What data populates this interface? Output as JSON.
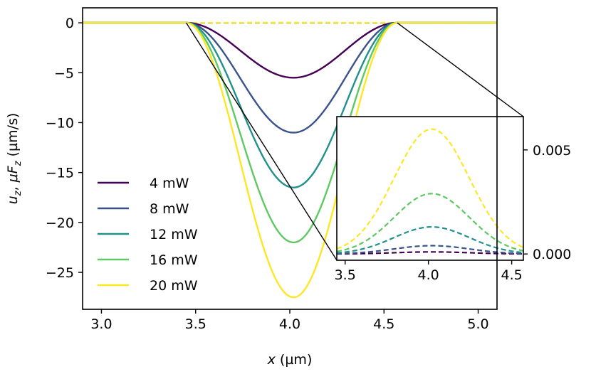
{
  "chart_data": {
    "type": "line",
    "xlabel_var": "x",
    "xlabel_unit": " (µm)",
    "ylabel": "u_z,  μF_z (µm/s)",
    "ylabel_parts": {
      "u": "u",
      "u_sub": "z",
      "sep": ",  ",
      "mu": "μ",
      "F": "F",
      "F_sub": "z",
      "unit": " (µm/s)"
    },
    "xlim": [
      2.9,
      5.1
    ],
    "ylim": [
      -28.7,
      1.5
    ],
    "xticks": [
      3.0,
      3.5,
      4.0,
      4.5,
      5.0
    ],
    "xtick_labels": [
      "3.0",
      "3.5",
      "4.0",
      "4.5",
      "5.0"
    ],
    "yticks": [
      0,
      -5,
      -10,
      -15,
      -20,
      -25
    ],
    "ytick_labels": [
      "0",
      "−5",
      "−10",
      "−15",
      "−20",
      "−25"
    ],
    "center": 4.02,
    "support": [
      3.45,
      4.57
    ],
    "series": [
      {
        "name": "4 mW",
        "color": "#440154",
        "min": -5.5,
        "inset_peak": 0.0001
      },
      {
        "name": "8 mW",
        "color": "#3b528b",
        "min": -11.0,
        "inset_peak": 0.0004
      },
      {
        "name": "12 mW",
        "color": "#21918c",
        "min": -16.5,
        "inset_peak": 0.0013
      },
      {
        "name": "16 mW",
        "color": "#5ec962",
        "min": -22.0,
        "inset_peak": 0.0029
      },
      {
        "name": "20 mW",
        "color": "#fde725",
        "min": -27.5,
        "inset_peak": 0.006
      }
    ],
    "inset": {
      "xlim": [
        3.45,
        4.57
      ],
      "ylim": [
        -0.0003,
        0.0066
      ],
      "xticks": [
        3.5,
        4.0,
        4.5
      ],
      "xtick_labels": [
        "3.5",
        "4.0",
        "4.5"
      ],
      "yticks": [
        0.0,
        0.005
      ],
      "ytick_labels": [
        "0.000",
        "0.005"
      ]
    }
  }
}
